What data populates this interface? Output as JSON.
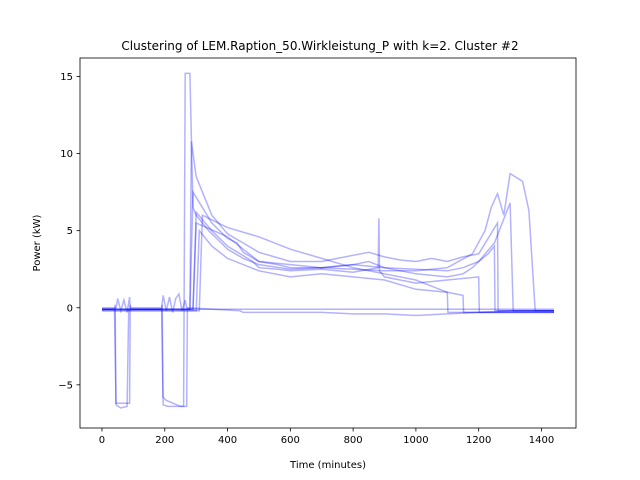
{
  "chart_data": {
    "type": "line",
    "title": "Clustering of LEM.Raption_50.Wirkleistung_P with k=2. Cluster #2",
    "xlabel": "Time (minutes)",
    "ylabel": "Power (kW)",
    "xlim": [
      -70,
      1510
    ],
    "ylim": [
      -7.8,
      16.2
    ],
    "xticks": [
      0,
      200,
      400,
      600,
      800,
      1000,
      1200,
      1400
    ],
    "xtick_labels": [
      "0",
      "200",
      "400",
      "600",
      "800",
      "1000",
      "1200",
      "1400"
    ],
    "yticks": [
      -5,
      0,
      5,
      10,
      15
    ],
    "ytick_labels": [
      "−5",
      "0",
      "5",
      "10",
      "15"
    ],
    "grid": false,
    "legend": "none",
    "line_color": "#0000ff",
    "series": [
      {
        "x": [
          0,
          40,
          45,
          60,
          80,
          85,
          95,
          190,
          195,
          210,
          260,
          265,
          280,
          290,
          300,
          340,
          380,
          400,
          450,
          500,
          600,
          700,
          800,
          900,
          1000,
          1100,
          1180,
          1220,
          1240,
          1260,
          1280,
          1300,
          1340,
          1360,
          1380,
          1440
        ],
        "y": [
          -0.1,
          -0.1,
          -6.3,
          -6.5,
          -6.4,
          -0.1,
          -0.1,
          -0.1,
          -6.3,
          -6.4,
          -6.4,
          15.2,
          15.2,
          6.5,
          6.0,
          5.0,
          4.2,
          3.8,
          3.2,
          2.8,
          2.5,
          2.6,
          2.5,
          2.4,
          2.4,
          2.6,
          3.5,
          5.0,
          6.5,
          7.4,
          6.0,
          8.7,
          8.2,
          6.3,
          -0.2,
          -0.2
        ]
      },
      {
        "x": [
          0,
          280,
          285,
          300,
          350,
          400,
          450,
          500,
          600,
          700,
          750,
          800,
          850,
          900,
          950,
          1000,
          1050,
          1100,
          1150,
          1200,
          1230,
          1260,
          1262,
          1440
        ],
        "y": [
          -0.1,
          -0.1,
          10.8,
          8.5,
          6.0,
          4.8,
          4.2,
          3.6,
          3.0,
          3.0,
          3.2,
          3.4,
          3.6,
          3.3,
          3.1,
          3.0,
          3.2,
          3.0,
          3.3,
          3.5,
          4.5,
          5.5,
          -0.2,
          -0.2
        ]
      },
      {
        "x": [
          0,
          280,
          290,
          350,
          400,
          430,
          450,
          500,
          600,
          700,
          800,
          850,
          900,
          1000,
          1100,
          1150,
          1180,
          1200,
          1230,
          1250,
          1252,
          1440
        ],
        "y": [
          -0.1,
          -0.1,
          7.5,
          5.5,
          4.5,
          4.2,
          3.6,
          3.0,
          2.8,
          2.6,
          2.8,
          3.0,
          2.6,
          2.2,
          2.0,
          2.2,
          2.6,
          3.0,
          3.5,
          4.0,
          -0.2,
          -0.2
        ]
      },
      {
        "x": [
          0,
          290,
          300,
          350,
          400,
          480,
          500,
          560,
          600,
          700,
          800,
          880,
          882,
          884,
          900,
          1000,
          1100,
          1200,
          1202,
          1440
        ],
        "y": [
          -0.1,
          -0.1,
          6.2,
          5.0,
          4.0,
          3.0,
          2.6,
          2.5,
          2.4,
          2.5,
          2.3,
          2.6,
          5.8,
          2.4,
          2.0,
          1.6,
          1.8,
          2.0,
          -0.3,
          -0.3
        ]
      },
      {
        "x": [
          0,
          300,
          310,
          350,
          400,
          450,
          500,
          600,
          700,
          800,
          900,
          1000,
          1100,
          1150,
          1152,
          1440
        ],
        "y": [
          -0.2,
          -0.2,
          5.0,
          4.0,
          3.2,
          2.8,
          2.4,
          2.0,
          2.2,
          2.0,
          1.8,
          1.2,
          1.0,
          0.8,
          -0.3,
          -0.3
        ]
      },
      {
        "x": [
          0,
          310,
          320,
          400,
          500,
          600,
          700,
          800,
          900,
          1000,
          1050,
          1100,
          1102,
          1440
        ],
        "y": [
          -0.2,
          -0.2,
          6.0,
          5.2,
          4.6,
          3.8,
          3.2,
          2.6,
          2.2,
          1.8,
          1.4,
          1.0,
          -0.3,
          -0.3
        ]
      },
      {
        "x": [
          0,
          290,
          300,
          400,
          500,
          560,
          600,
          700,
          800,
          900,
          1000,
          1100,
          1150,
          1200,
          1250,
          1300,
          1310,
          1440
        ],
        "y": [
          -0.1,
          -0.1,
          5.5,
          4.6,
          3.0,
          2.8,
          2.6,
          2.6,
          2.8,
          2.6,
          2.5,
          2.4,
          2.6,
          3.0,
          4.2,
          6.8,
          -0.2,
          -0.2
        ]
      },
      {
        "x": [
          0,
          45,
          50,
          60,
          70,
          80,
          88,
          90,
          190,
          195,
          205,
          215,
          225,
          235,
          245,
          255,
          265,
          270,
          440,
          450,
          500,
          600,
          700,
          800,
          900,
          1000,
          1100,
          1200,
          1300,
          1440
        ],
        "y": [
          0,
          0,
          0.6,
          -0.2,
          0.5,
          -0.3,
          0.7,
          0,
          0,
          0.8,
          -0.2,
          0.7,
          -0.3,
          0.6,
          0.9,
          -0.2,
          0.5,
          0,
          -0.2,
          -0.3,
          -0.3,
          -0.3,
          -0.3,
          -0.4,
          -0.4,
          -0.5,
          -0.4,
          -0.3,
          -0.2,
          -0.2
        ]
      },
      {
        "x": [
          0,
          40,
          42,
          44,
          88,
          90,
          92,
          190,
          192,
          194,
          205,
          250,
          270,
          272,
          274,
          1440
        ],
        "y": [
          -0.1,
          -0.1,
          0.2,
          -6.2,
          -6.2,
          0.2,
          -0.1,
          -0.1,
          0.2,
          -5.8,
          -6.0,
          -6.4,
          -6.4,
          0.0,
          -0.1,
          -0.1
        ]
      }
    ]
  }
}
